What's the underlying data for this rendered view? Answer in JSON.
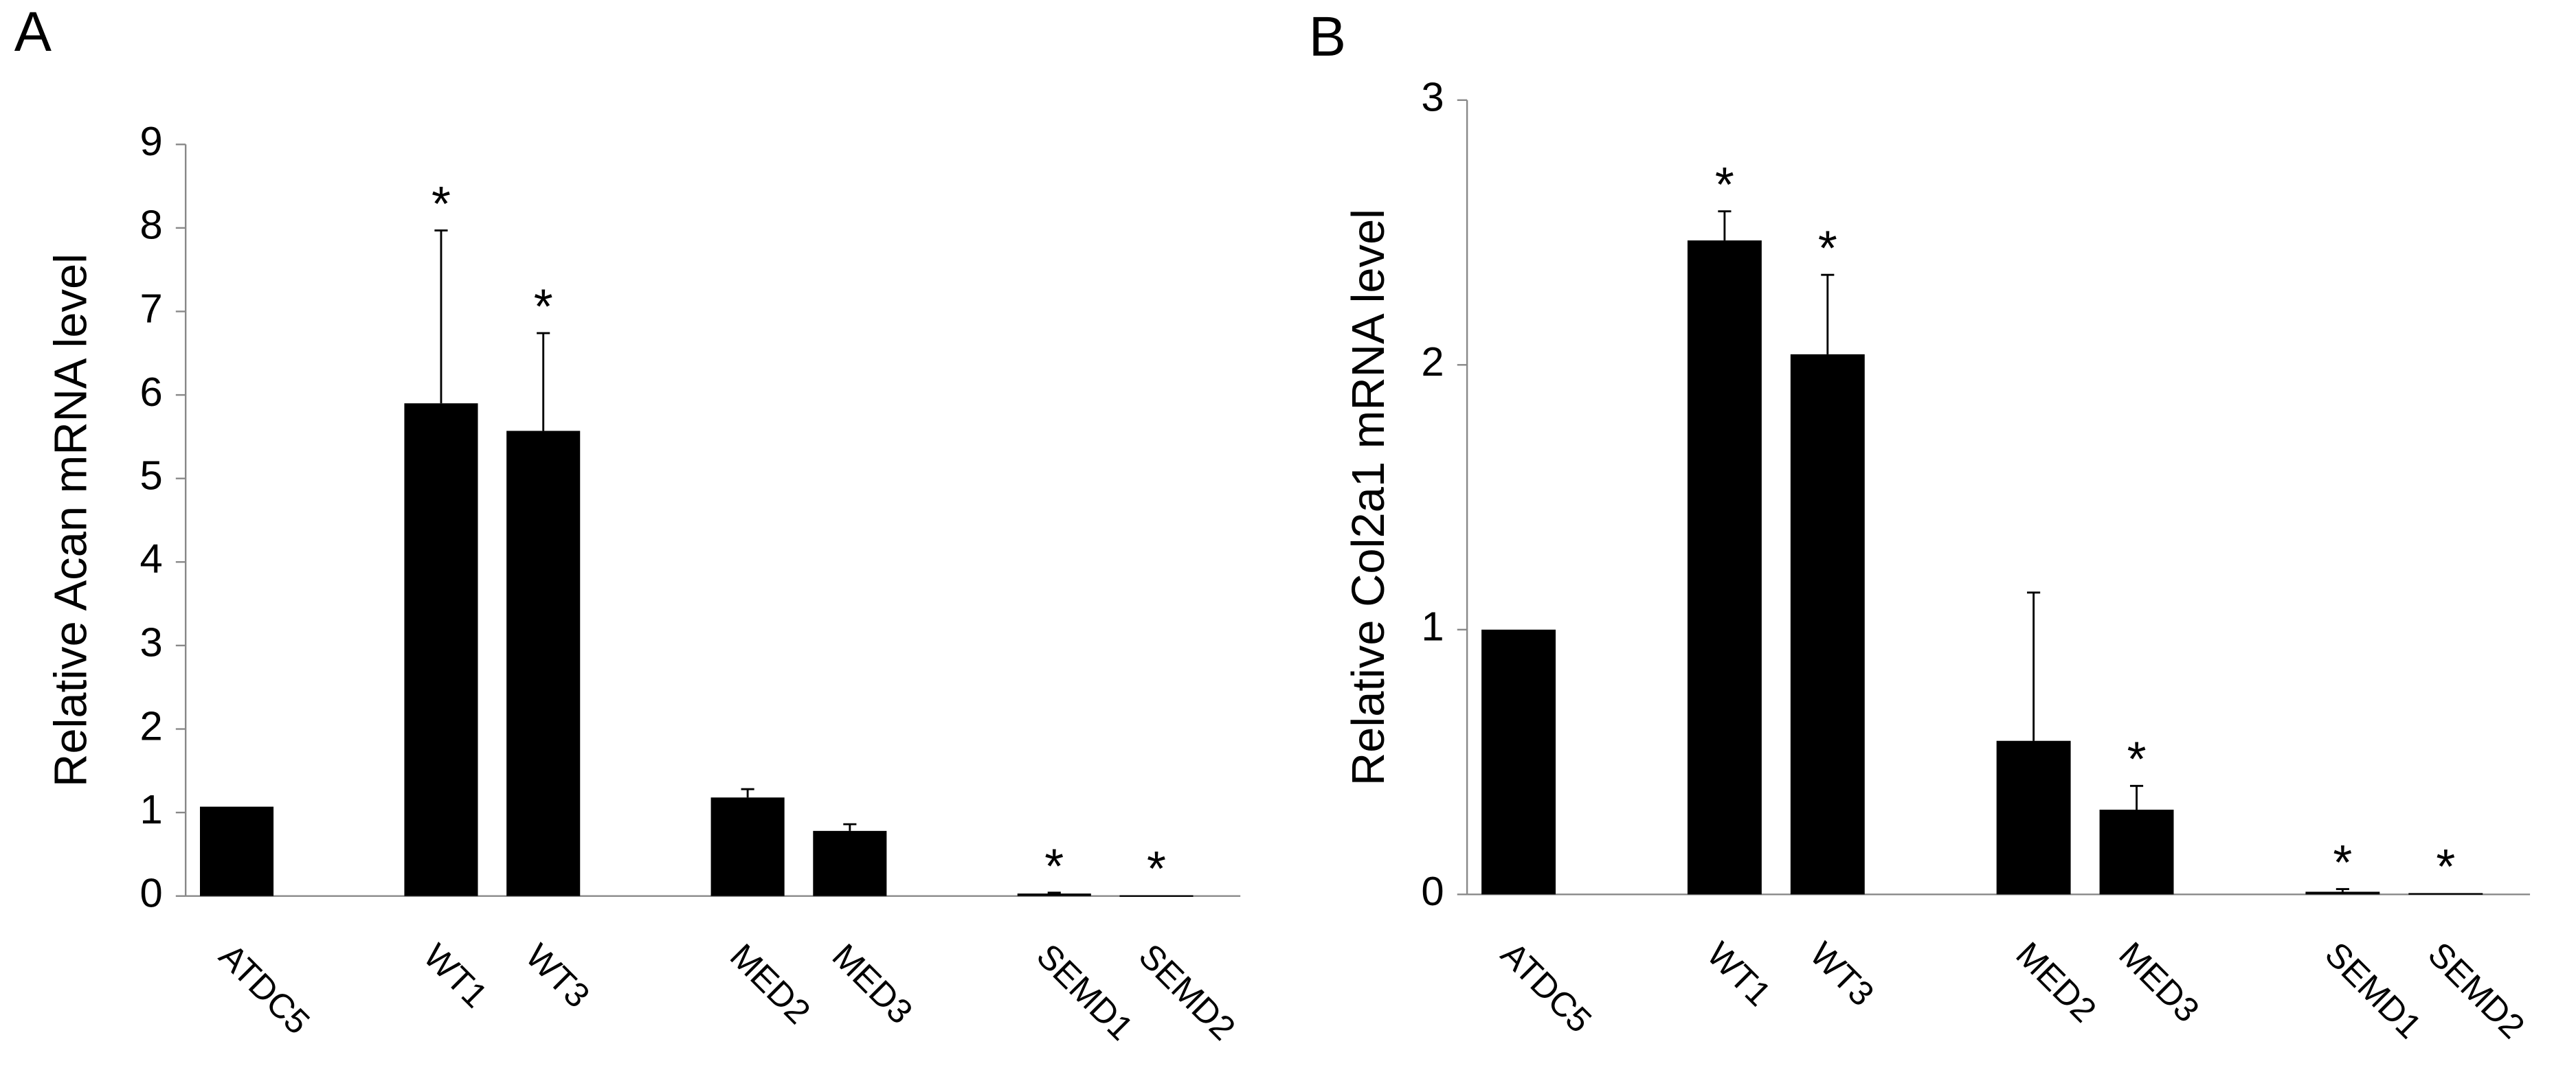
{
  "chart_data": [
    {
      "type": "bar",
      "panel": "A",
      "y_label": "Relative Acan mRNA level",
      "categories": [
        "ATDC5",
        null,
        "WT1",
        "WT3",
        null,
        "MED2",
        "MED3",
        null,
        "SEMD1",
        "SEMD2"
      ],
      "values": [
        1.07,
        null,
        5.9,
        5.57,
        null,
        1.18,
        0.78,
        null,
        0.03,
        0.01
      ],
      "errors": [
        null,
        null,
        2.07,
        1.17,
        null,
        0.1,
        0.08,
        null,
        0.01,
        null
      ],
      "significance": [
        null,
        null,
        "*",
        "*",
        null,
        null,
        null,
        null,
        "*",
        "*"
      ],
      "color": "#000000",
      "ylim": [
        0,
        9
      ],
      "yticks": [
        0,
        1,
        2,
        3,
        4,
        5,
        6,
        7,
        8,
        9
      ]
    },
    {
      "type": "bar",
      "panel": "B",
      "y_label": "Relative Col2a1  mRNA level",
      "categories": [
        "ATDC5",
        null,
        "WT1",
        "WT3",
        null,
        "MED2",
        "MED3",
        null,
        "SEMD1",
        "SEMD2"
      ],
      "values": [
        1.0,
        null,
        2.47,
        2.04,
        null,
        0.58,
        0.32,
        null,
        0.01,
        0.005
      ],
      "errors": [
        null,
        null,
        0.11,
        0.3,
        null,
        0.56,
        0.09,
        null,
        0.01,
        null
      ],
      "significance": [
        null,
        null,
        "*",
        "*",
        null,
        null,
        "*",
        null,
        "*",
        "*"
      ],
      "color": "#000000",
      "ylim": [
        0,
        3
      ],
      "yticks": [
        0,
        1,
        2,
        3
      ]
    }
  ]
}
